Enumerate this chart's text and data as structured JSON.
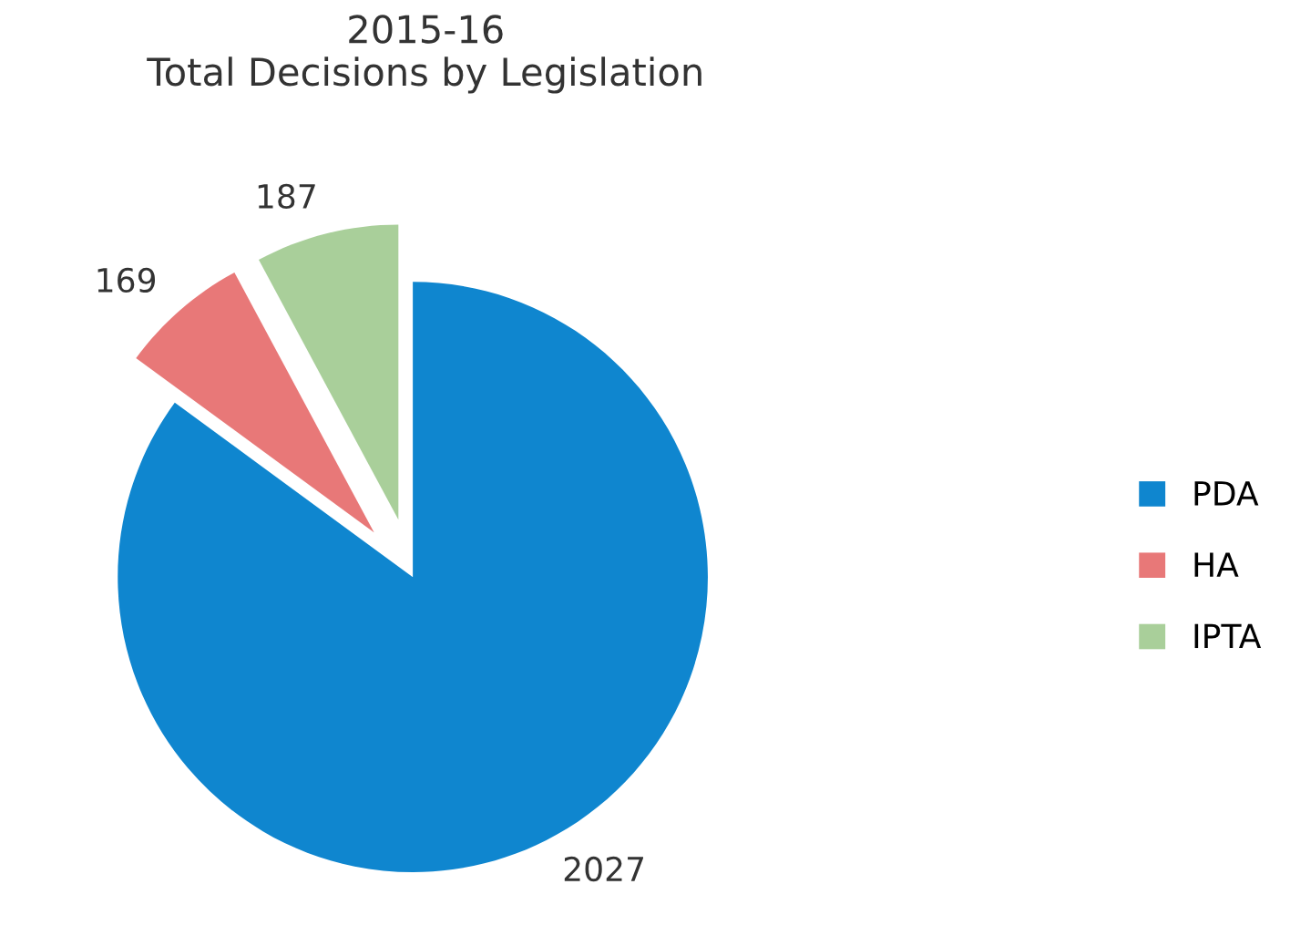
{
  "chart_data": {
    "type": "pie",
    "title": "2015-16\nTotal Decisions by Legislation",
    "categories": [
      "PDA",
      "HA",
      "IPTA"
    ],
    "values": [
      2027,
      169,
      187
    ],
    "colors": [
      "#0f86cf",
      "#e87878",
      "#a9cf9a"
    ],
    "data_labels": true,
    "legend": "right"
  }
}
